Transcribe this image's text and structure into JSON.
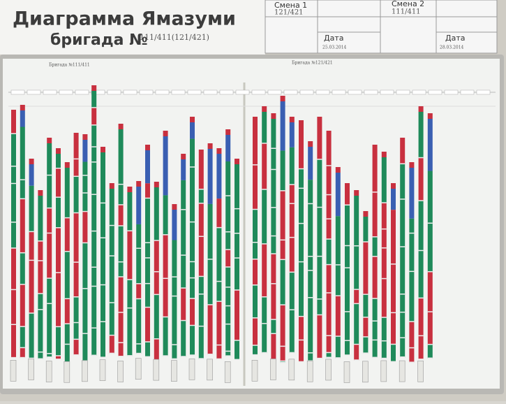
{
  "header": {
    "title": "Диаграмма Ямазуми",
    "brigade_label": "бригада №",
    "brigade_value": "111/411(121/421)"
  },
  "shift1": {
    "label": "Смена 1",
    "value": "121/421",
    "date_label": "Дата",
    "date": "25.03.2014"
  },
  "shift2": {
    "label": "Смена 2",
    "value": "111/411",
    "date_label": "Дата",
    "date": "28.03.2014"
  },
  "board": {
    "left_label": "Бригада №111/411",
    "right_label": "Бригада №121/421"
  }
}
